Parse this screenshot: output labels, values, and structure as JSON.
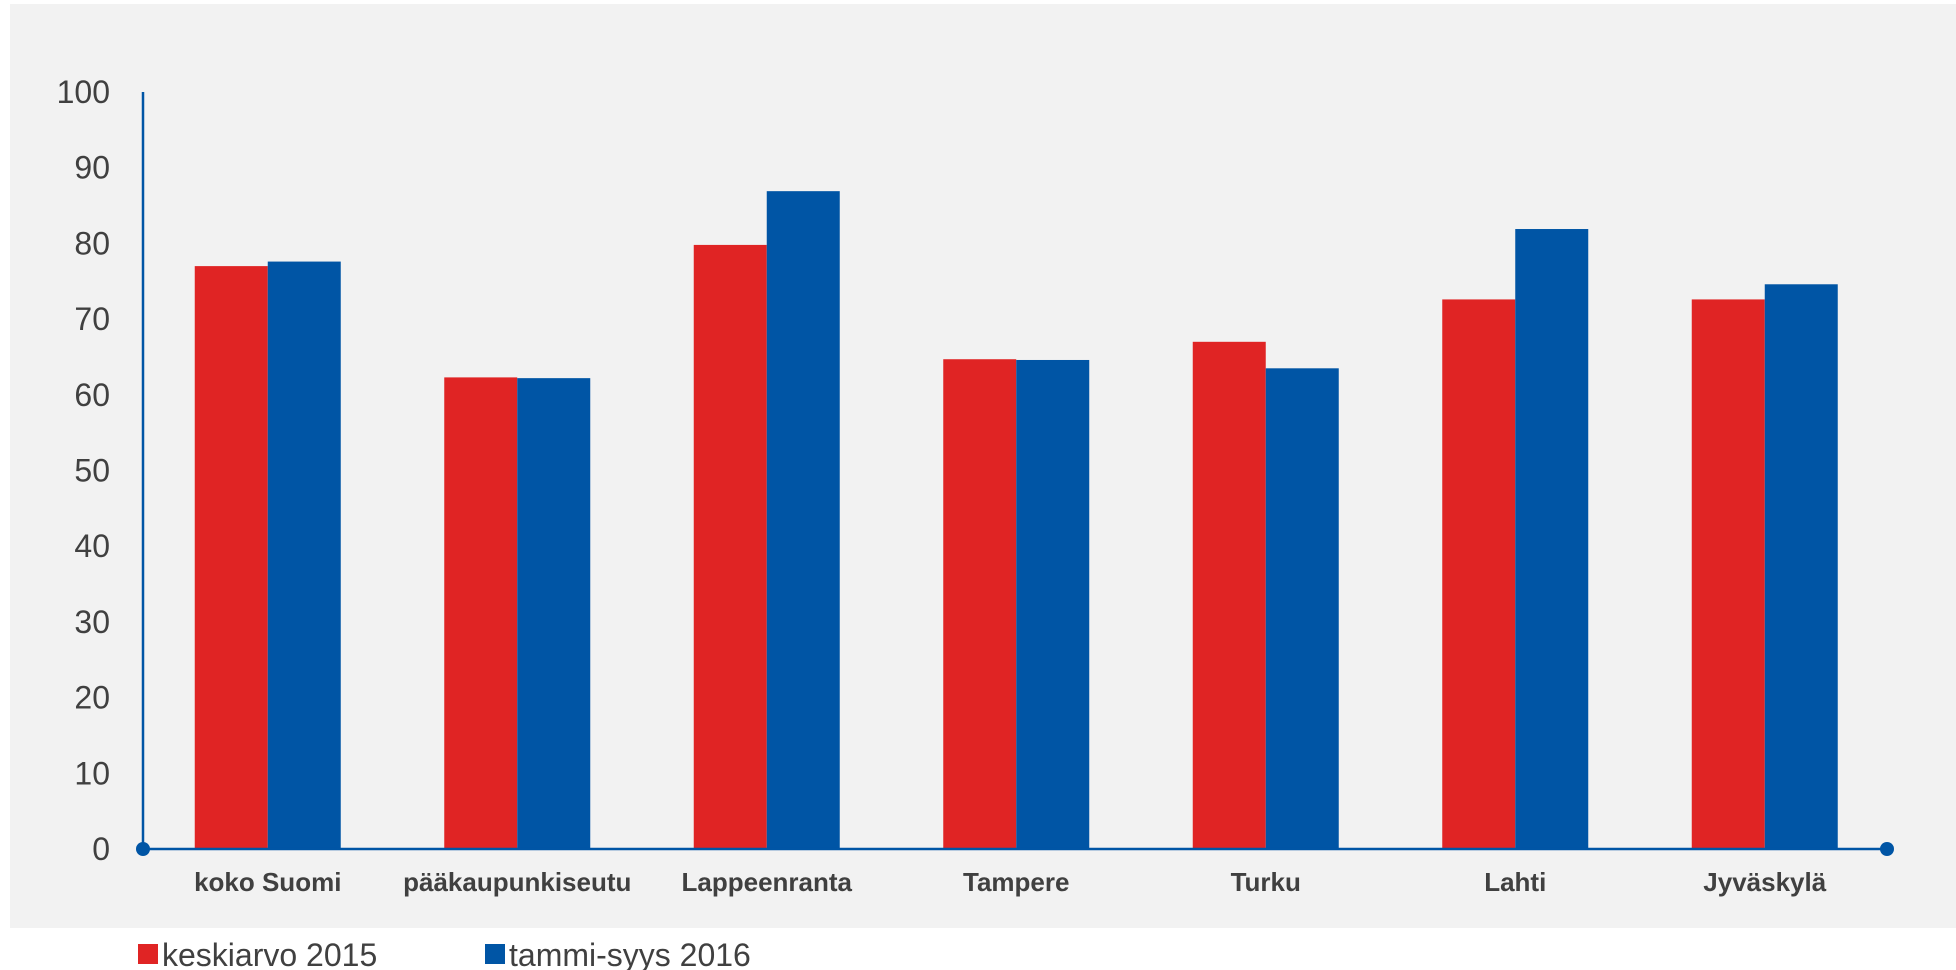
{
  "chart_data": {
    "type": "bar",
    "title": "",
    "xlabel": "",
    "ylabel": "",
    "categories": [
      "koko Suomi",
      "pääkaupunkiseutu",
      "Lappeenranta",
      "Tampere",
      "Turku",
      "Lahti",
      "Jyväskylä"
    ],
    "series": [
      {
        "name": "keskiarvo 2015",
        "color": "#e02424",
        "values": [
          77,
          62.3,
          79.8,
          64.7,
          67,
          72.6,
          72.6
        ]
      },
      {
        "name": "tammi-syys 2016",
        "color": "#0055a5",
        "values": [
          77.6,
          62.2,
          86.9,
          64.6,
          63.5,
          81.9,
          74.6
        ]
      }
    ],
    "ylim": [
      0,
      100
    ],
    "yticks": [
      0,
      10,
      20,
      30,
      40,
      50,
      60,
      70,
      80,
      90,
      100
    ],
    "grid": false,
    "legend_position": "bottom-left",
    "plot_background": "#f2f2f2",
    "axis_color": "#0055a5"
  }
}
